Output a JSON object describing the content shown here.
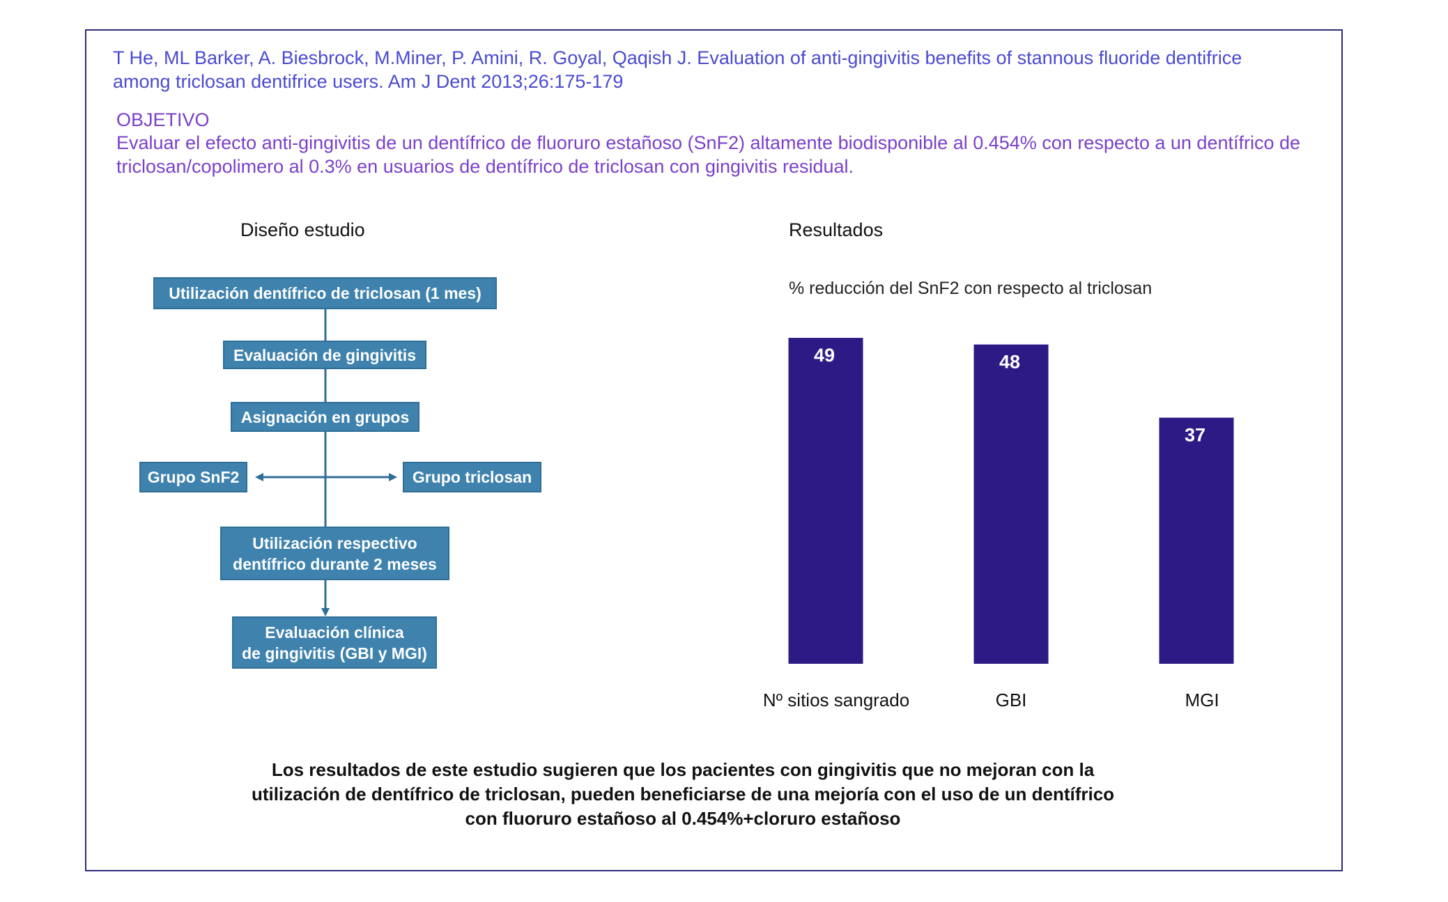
{
  "citation": "T He, ML Barker, A. Biesbrock, M.Miner, P. Amini, R. Goyal, Qaqish J. Evaluation of anti-gingivitis benefits of stannous fluoride dentifrice among triclosan dentifrice users. Am J Dent 2013;26:175-179",
  "objective": {
    "heading": "OBJETIVO",
    "text": "Evaluar  el efecto anti-gingivitis de un dentífrico de fluoruro estañoso (SnF2) altamente biodisponible al 0.454% con respecto a un dentífrico de triclosan/copolimero al 0.3%  en usuarios de dentífrico de triclosan con gingivitis residual."
  },
  "design": {
    "title": "Diseño estudio",
    "steps": {
      "step1": "Utilización dentífrico de triclosan (1 mes)",
      "step2": "Evaluación de gingivitis",
      "step3": "Asignación en grupos",
      "group_left": "Grupo SnF2",
      "group_right": "Grupo triclosan",
      "step4": "Utilización respectivo\ndentífrico durante 2 meses",
      "step5": "Evaluación clínica\nde gingivitis (GBI y MGI)"
    },
    "box_color": "#3e82ad",
    "arrow_color": "#2f6e96"
  },
  "results": {
    "title": "Resultados"
  },
  "chart_data": {
    "type": "bar",
    "title": "% reducción del SnF2 con respecto al triclosan",
    "categories": [
      "Nº sitios sangrado",
      "GBI",
      "MGI"
    ],
    "values": [
      49,
      48,
      37
    ],
    "data_labels": [
      "49",
      "48",
      "37"
    ],
    "bar_color": "#2d1a84",
    "ylim": [
      0,
      50
    ]
  },
  "conclusion": "Los resultados de este estudio sugieren que los pacientes con gingivitis que no mejoran con la\nutilización de dentífrico de triclosan, pueden beneficiarse de una mejoría con el uso de un dentífrico\ncon fluoruro estañoso al 0.454%+cloruro estañoso"
}
